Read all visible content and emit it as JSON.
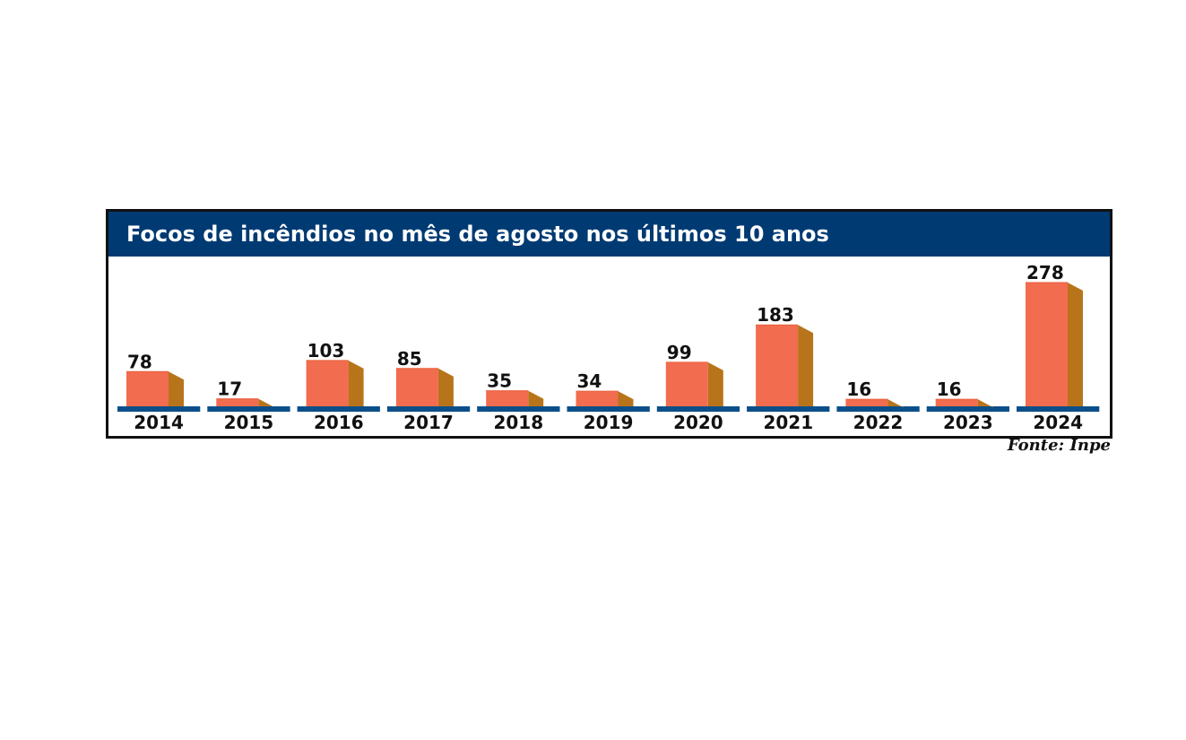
{
  "chart_data": {
    "type": "bar",
    "title": "Focos de incêndios no mês de agosto nos últimos 10 anos",
    "categories": [
      "2014",
      "2015",
      "2016",
      "2017",
      "2018",
      "2019",
      "2020",
      "2021",
      "2022",
      "2023",
      "2024"
    ],
    "values": [
      78,
      17,
      103,
      85,
      35,
      34,
      99,
      183,
      16,
      16,
      278
    ],
    "ylim": [
      0,
      278
    ],
    "xlabel": "",
    "ylabel": "",
    "grid": false,
    "legend": "none",
    "source": "Fonte: Inpe"
  },
  "colors": {
    "header_background": "#003a73",
    "bar_front": "#f26c4f",
    "bar_side": "#b8741a",
    "bar_top": "#e8603f",
    "baseline": "#0a4f8a",
    "frame": "#111111",
    "title_text": "#ffffff",
    "label_text": "#111111"
  }
}
